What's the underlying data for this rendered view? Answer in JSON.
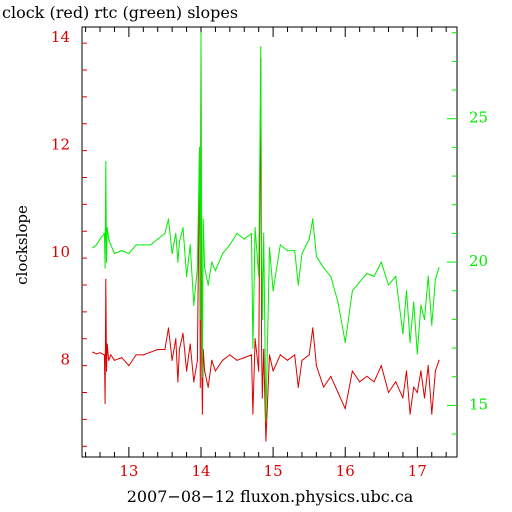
{
  "chart_data": {
    "type": "line",
    "title": "clock (red) rtc (green) slopes",
    "xlabel": "2007−08−12 fluxon.physics.ubc.ca",
    "ylabel": "clockslope",
    "x_ticks": [
      13,
      14,
      15,
      16,
      17
    ],
    "y_left_ticks": [
      8,
      10,
      12,
      14
    ],
    "y_right_ticks": [
      15,
      20,
      25
    ],
    "xlim": [
      12.35,
      17.55
    ],
    "ylim_left": [
      6.2,
      14.2
    ],
    "ylim_right": [
      13.2,
      28.2
    ],
    "grid": false,
    "colors": {
      "left_axis": "#dd0000",
      "right_axis": "#00ee00",
      "red_series": "#dd0000",
      "green_series": "#00ee00"
    },
    "series": [
      {
        "axis": "left",
        "color": "#dd0000",
        "x": [
          12.5,
          12.55,
          12.6,
          12.66,
          12.67,
          12.68,
          12.69,
          12.7,
          12.72,
          12.75,
          12.8,
          12.9,
          13.0,
          13.1,
          13.2,
          13.3,
          13.4,
          13.5,
          13.55,
          13.6,
          13.65,
          13.68,
          13.7,
          13.75,
          13.8,
          13.85,
          13.9,
          13.95,
          13.98,
          13.99,
          14.0,
          14.01,
          14.02,
          14.03,
          14.05,
          14.1,
          14.15,
          14.2,
          14.3,
          14.4,
          14.5,
          14.6,
          14.7,
          14.72,
          14.75,
          14.8,
          14.83,
          14.84,
          14.85,
          14.87,
          14.9,
          14.95,
          15.0,
          15.1,
          15.2,
          15.3,
          15.35,
          15.4,
          15.5,
          15.55,
          15.6,
          15.7,
          15.8,
          15.9,
          16.0,
          16.1,
          16.2,
          16.3,
          16.4,
          16.5,
          16.6,
          16.7,
          16.8,
          16.85,
          16.9,
          16.95,
          17.0,
          17.05,
          17.1,
          17.15,
          17.2,
          17.25,
          17.3
        ],
        "y": [
          8.15,
          8.12,
          8.14,
          8.1,
          7.2,
          9.5,
          7.8,
          8.3,
          8.0,
          8.1,
          8.0,
          8.05,
          7.9,
          8.1,
          8.1,
          8.15,
          8.2,
          8.2,
          8.6,
          8.0,
          8.4,
          7.6,
          8.2,
          8.5,
          7.8,
          8.3,
          7.6,
          8.0,
          11.9,
          7.5,
          13.8,
          8.0,
          7.0,
          8.2,
          7.8,
          7.5,
          8.0,
          7.8,
          8.0,
          8.1,
          8.0,
          8.05,
          8.1,
          7.0,
          8.4,
          7.8,
          13.6,
          8.2,
          7.3,
          8.2,
          6.5,
          8.1,
          7.8,
          8.1,
          8.0,
          8.1,
          7.5,
          8.0,
          8.1,
          8.6,
          7.9,
          7.5,
          7.7,
          7.4,
          7.1,
          7.8,
          7.6,
          7.7,
          7.6,
          7.9,
          7.4,
          7.6,
          7.3,
          7.8,
          7.0,
          7.5,
          7.4,
          7.8,
          7.3,
          7.9,
          7.0,
          7.8,
          8.0
        ]
      },
      {
        "axis": "right",
        "color": "#00ee00",
        "x": [
          12.5,
          12.55,
          12.6,
          12.66,
          12.67,
          12.68,
          12.69,
          12.7,
          12.72,
          12.75,
          12.8,
          12.9,
          13.0,
          13.1,
          13.2,
          13.3,
          13.4,
          13.5,
          13.55,
          13.6,
          13.65,
          13.68,
          13.7,
          13.75,
          13.8,
          13.85,
          13.9,
          13.95,
          13.98,
          13.99,
          14.0,
          14.01,
          14.02,
          14.03,
          14.05,
          14.1,
          14.15,
          14.2,
          14.3,
          14.4,
          14.5,
          14.6,
          14.7,
          14.72,
          14.75,
          14.8,
          14.83,
          14.84,
          14.85,
          14.87,
          14.9,
          14.95,
          15.0,
          15.1,
          15.2,
          15.3,
          15.35,
          15.4,
          15.5,
          15.55,
          15.6,
          15.7,
          15.8,
          15.9,
          16.0,
          16.1,
          16.2,
          16.3,
          16.4,
          16.5,
          16.6,
          16.7,
          16.8,
          16.85,
          16.9,
          16.95,
          17.0,
          17.05,
          17.1,
          17.15,
          17.2,
          17.25,
          17.3
        ],
        "y": [
          20.5,
          20.6,
          20.8,
          21.0,
          19.8,
          23.5,
          20.0,
          21.2,
          20.8,
          20.6,
          20.3,
          20.4,
          20.3,
          20.6,
          20.6,
          20.6,
          20.8,
          21.0,
          21.5,
          20.3,
          21.0,
          20.0,
          20.7,
          21.2,
          19.5,
          20.6,
          18.5,
          19.8,
          24.0,
          18.0,
          28.0,
          20.0,
          16.0,
          21.5,
          19.8,
          19.2,
          20.0,
          19.7,
          20.3,
          20.6,
          21.0,
          20.8,
          21.0,
          17.0,
          21.2,
          19.5,
          27.5,
          20.5,
          18.0,
          21.0,
          14.5,
          20.5,
          19.0,
          20.6,
          20.4,
          20.4,
          19.2,
          20.3,
          20.8,
          21.5,
          20.2,
          19.8,
          19.5,
          18.6,
          17.2,
          19.0,
          19.3,
          19.6,
          19.5,
          20.0,
          19.2,
          19.5,
          17.5,
          19.0,
          17.2,
          18.6,
          16.8,
          18.5,
          18.0,
          19.5,
          17.8,
          19.4,
          19.8
        ]
      }
    ]
  }
}
